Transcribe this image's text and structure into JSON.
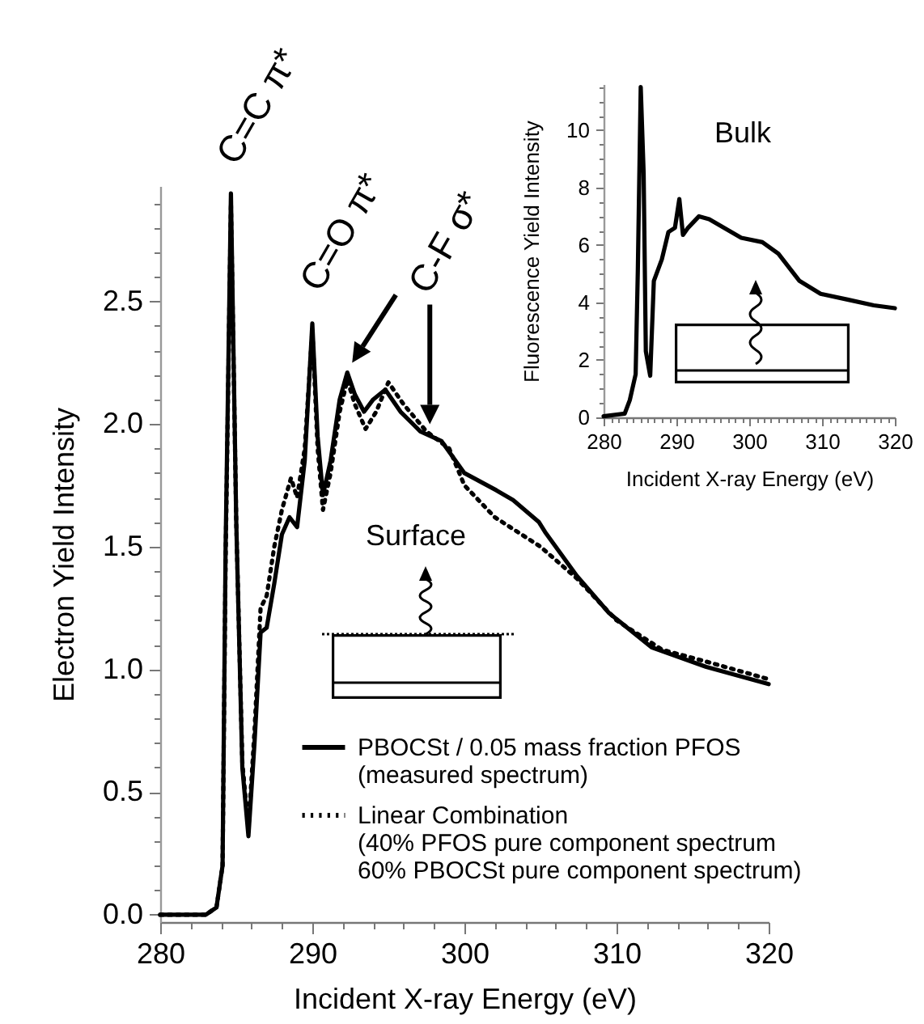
{
  "chart_data": [
    {
      "type": "line",
      "xlabel": "Incident X-ray Energy (eV)",
      "ylabel": "Electron Yield Intensity",
      "xlim": [
        280,
        320
      ],
      "ylim": [
        -0.03,
        2.97
      ],
      "legend": "bottom right",
      "marker": "none",
      "xticks": [
        280,
        {
          "value": 282,
          "label": null
        },
        {
          "value": 284,
          "label": null
        },
        {
          "value": 286,
          "label": null
        },
        {
          "value": 288,
          "label": null
        },
        290,
        {
          "value": 292,
          "label": null
        },
        {
          "value": 294,
          "label": null
        },
        {
          "value": 296,
          "label": null
        },
        {
          "value": 298,
          "label": null
        },
        300,
        {
          "value": 302,
          "label": null
        },
        {
          "value": 304,
          "label": null
        },
        {
          "value": 306,
          "label": null
        },
        {
          "value": 308,
          "label": null
        },
        310,
        {
          "value": 312,
          "label": null
        },
        {
          "value": 314,
          "label": null
        },
        {
          "value": 316,
          "label": null
        },
        {
          "value": 318,
          "label": null
        },
        320
      ],
      "yticks": [
        {
          "value": 0,
          "label": "0.0"
        },
        {
          "value": 0.1,
          "label": null
        },
        {
          "value": 0.2,
          "label": null
        },
        {
          "value": 0.3,
          "label": null
        },
        {
          "value": 0.4,
          "label": null
        },
        0.5,
        {
          "value": 0.6,
          "label": null
        },
        {
          "value": 0.7,
          "label": null
        },
        {
          "value": 0.8,
          "label": null
        },
        {
          "value": 0.9,
          "label": null
        },
        {
          "value": 1,
          "label": "1.0"
        },
        {
          "value": 1.1,
          "label": null
        },
        {
          "value": 1.2,
          "label": null
        },
        {
          "value": 1.3,
          "label": null
        },
        {
          "value": 1.4,
          "label": null
        },
        1.5,
        {
          "value": 1.6,
          "label": null
        },
        {
          "value": 1.7,
          "label": null
        },
        {
          "value": 1.8,
          "label": null
        },
        {
          "value": 1.9,
          "label": null
        },
        {
          "value": 2,
          "label": "2.0"
        },
        {
          "value": 2.1,
          "label": null
        },
        {
          "value": 2.2,
          "label": null
        },
        {
          "value": 2.3,
          "label": null
        },
        {
          "value": 2.4,
          "label": null
        },
        2.5,
        {
          "value": 2.6,
          "label": null
        },
        {
          "value": 2.7,
          "label": null
        },
        {
          "value": 2.8,
          "label": null
        },
        {
          "value": 2.9,
          "label": null
        }
      ],
      "annotations": [
        {
          "text": "C=C π*",
          "x": 284.65,
          "y": 2.94
        },
        {
          "text": "C=O π*",
          "x": 290.0,
          "y": 2.41
        },
        {
          "text": "C-F σ*",
          "x": 292.3,
          "y": 2.21
        },
        "Surface"
      ],
      "series": [
        {
          "name": "PBOCSt / 0.05 mass fraction PFOS\n(measured spectrum)",
          "color": "#000000",
          "line_style": "solid",
          "x": [
            280,
            283,
            283.7,
            284.1,
            284.3,
            284.65,
            285.0,
            285.4,
            285.8,
            286.2,
            286.6,
            287.0,
            287.5,
            288.0,
            288.5,
            289.0,
            289.5,
            290.0,
            290.35,
            290.7,
            291.2,
            291.8,
            292.3,
            292.8,
            293.4,
            294.0,
            294.8,
            295.8,
            297.1,
            298.5,
            300.0,
            302.1,
            303.2,
            304.9,
            305.3,
            307.4,
            309.5,
            312.3,
            315.9,
            320
          ],
          "values": [
            0.0,
            0.0,
            0.03,
            0.2,
            1.5,
            2.94,
            1.6,
            0.6,
            0.32,
            0.7,
            1.15,
            1.17,
            1.35,
            1.55,
            1.62,
            1.58,
            1.85,
            2.41,
            1.95,
            1.71,
            1.85,
            2.1,
            2.21,
            2.12,
            2.05,
            2.1,
            2.14,
            2.05,
            1.97,
            1.93,
            1.8,
            1.73,
            1.69,
            1.6,
            1.56,
            1.38,
            1.23,
            1.09,
            1.01,
            0.94
          ]
        },
        {
          "name": "Linear Combination\n(40% PFOS pure component spectrum\n 60% PBOCSt pure component spectrum)",
          "color": "#000000",
          "line_style": "dotted",
          "x": [
            280,
            283,
            283.7,
            284.1,
            284.3,
            284.65,
            285.0,
            285.4,
            285.8,
            286.2,
            286.6,
            287.0,
            287.5,
            288.0,
            288.6,
            289.0,
            289.5,
            290.0,
            290.35,
            290.7,
            291.2,
            291.8,
            292.3,
            292.8,
            293.5,
            294.2,
            295.0,
            296.0,
            297.5,
            299.0,
            300.0,
            302.0,
            305.0,
            307.4,
            310.0,
            313.0,
            316.0,
            320
          ],
          "values": [
            0.0,
            0.0,
            0.03,
            0.2,
            1.45,
            2.9,
            1.6,
            0.62,
            0.35,
            0.75,
            1.25,
            1.3,
            1.5,
            1.65,
            1.78,
            1.7,
            1.9,
            2.38,
            1.9,
            1.65,
            1.8,
            2.05,
            2.18,
            2.08,
            1.98,
            2.05,
            2.17,
            2.08,
            1.97,
            1.9,
            1.75,
            1.62,
            1.5,
            1.37,
            1.2,
            1.08,
            1.03,
            0.96
          ]
        }
      ]
    },
    {
      "type": "line",
      "title": "Bulk",
      "xlabel": "Incident X-ray Energy (eV)",
      "ylabel": "Fluorescence Yield Intensity",
      "xlim": [
        280,
        320
      ],
      "ylim": [
        0,
        11.6
      ],
      "marker": "none",
      "xticks": [
        280,
        {
          "value": 281,
          "label": null
        },
        {
          "value": 282,
          "label": null
        },
        {
          "value": 283,
          "label": null
        },
        {
          "value": 284,
          "label": null
        },
        {
          "value": 285,
          "label": null
        },
        {
          "value": 286,
          "label": null
        },
        {
          "value": 287,
          "label": null
        },
        {
          "value": 288,
          "label": null
        },
        {
          "value": 289,
          "label": null
        },
        290,
        {
          "value": 291,
          "label": null
        },
        {
          "value": 292,
          "label": null
        },
        {
          "value": 293,
          "label": null
        },
        {
          "value": 294,
          "label": null
        },
        {
          "value": 295,
          "label": null
        },
        {
          "value": 296,
          "label": null
        },
        {
          "value": 297,
          "label": null
        },
        {
          "value": 298,
          "label": null
        },
        {
          "value": 299,
          "label": null
        },
        300,
        {
          "value": 301,
          "label": null
        },
        {
          "value": 302,
          "label": null
        },
        {
          "value": 303,
          "label": null
        },
        {
          "value": 304,
          "label": null
        },
        {
          "value": 305,
          "label": null
        },
        {
          "value": 306,
          "label": null
        },
        {
          "value": 307,
          "label": null
        },
        {
          "value": 308,
          "label": null
        },
        {
          "value": 309,
          "label": null
        },
        310,
        {
          "value": 311,
          "label": null
        },
        {
          "value": 312,
          "label": null
        },
        {
          "value": 313,
          "label": null
        },
        {
          "value": 314,
          "label": null
        },
        {
          "value": 315,
          "label": null
        },
        {
          "value": 316,
          "label": null
        },
        {
          "value": 317,
          "label": null
        },
        {
          "value": 318,
          "label": null
        },
        {
          "value": 319,
          "label": null
        },
        320
      ],
      "yticks": [
        0,
        {
          "value": 0.5,
          "label": null
        },
        {
          "value": 1,
          "label": null
        },
        {
          "value": 1.5,
          "label": null
        },
        2,
        {
          "value": 2.5,
          "label": null
        },
        {
          "value": 3,
          "label": null
        },
        {
          "value": 3.5,
          "label": null
        },
        4,
        {
          "value": 4.5,
          "label": null
        },
        {
          "value": 5,
          "label": null
        },
        {
          "value": 5.5,
          "label": null
        },
        6,
        {
          "value": 6.5,
          "label": null
        },
        {
          "value": 7,
          "label": null
        },
        {
          "value": 7.5,
          "label": null
        },
        8,
        {
          "value": 8.5,
          "label": null
        },
        {
          "value": 9,
          "label": null
        },
        {
          "value": 9.5,
          "label": null
        },
        10,
        {
          "value": 10.5,
          "label": null
        },
        {
          "value": 11,
          "label": null
        },
        {
          "value": 11.5,
          "label": null
        }
      ],
      "series": [
        {
          "color": "#000000",
          "line_style": "solid",
          "x": [
            280,
            282.9,
            283.6,
            284.4,
            284.7,
            285.1,
            285.5,
            285.8,
            286.4,
            286.9,
            288.0,
            288.9,
            289.8,
            290.4,
            290.9,
            291.6,
            293.1,
            294.5,
            298.9,
            301.8,
            304.0,
            306.9,
            309.8,
            313.5,
            317.1,
            320
          ],
          "values": [
            0.04,
            0.13,
            0.6,
            1.5,
            5.1,
            11.5,
            8.5,
            2.3,
            1.45,
            4.75,
            5.5,
            6.45,
            6.6,
            7.6,
            6.35,
            6.6,
            7.0,
            6.9,
            6.25,
            6.1,
            5.7,
            4.75,
            4.3,
            4.1,
            3.9,
            3.8
          ]
        }
      ]
    }
  ]
}
